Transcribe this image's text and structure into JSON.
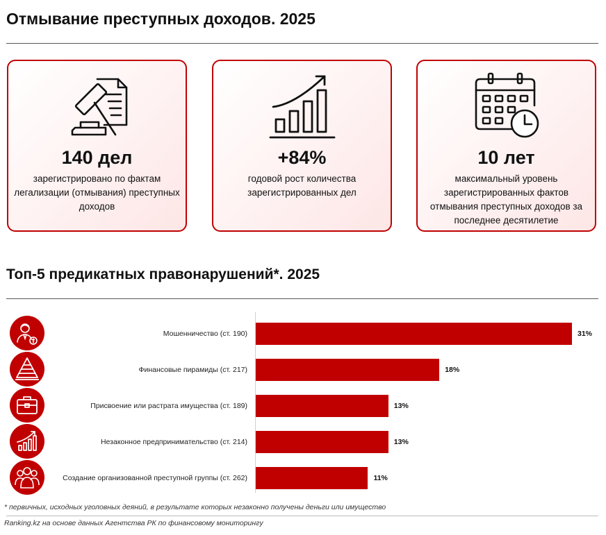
{
  "header": {
    "title": "Отмывание преступных доходов. 2025"
  },
  "cards": [
    {
      "icon": "gavel-document-icon",
      "value": "140 дел",
      "description": "зарегистрировано по фактам легализации (отмывания) преступных доходов"
    },
    {
      "icon": "growth-chart-icon",
      "value": "+84%",
      "description": "годовой рост количества зарегистрированных дел"
    },
    {
      "icon": "calendar-clock-icon",
      "value": "10 лет",
      "description": "максимальный уровень зарегистрированных фактов отмывания преступных доходов за последнее десятилетие"
    }
  ],
  "section": {
    "title": "Топ-5 предикатных правонарушений*. 2025"
  },
  "chart_data": {
    "type": "bar",
    "orientation": "horizontal",
    "categories": [
      "Мошенничество (ст. 190)",
      "Финансовые пирамиды (ст. 217)",
      "Присвоение или растрата имущества (ст. 189)",
      "Незаконное предпринимательство (ст. 214)",
      "Создание организованной преступной группы (ст. 262)"
    ],
    "values": [
      31,
      18,
      13,
      13,
      11
    ],
    "value_labels": [
      "31%",
      "18%",
      "13%",
      "13%",
      "11%"
    ],
    "category_icons": [
      "fraud-person-icon",
      "pyramid-icon",
      "briefcase-icon",
      "growth-chart-icon",
      "group-icon"
    ],
    "xlim": [
      0,
      35
    ],
    "bar_color": "#c00000",
    "grid": false
  },
  "footer": {
    "footnote": "* первичных, исходных уголовных деяний, в результате которых незаконно получены деньги или имущество",
    "source": "Ranking.kz на основе данных Агентства РК по финансовому мониторингу"
  },
  "colors": {
    "accent": "#c00000",
    "text": "#111111"
  }
}
